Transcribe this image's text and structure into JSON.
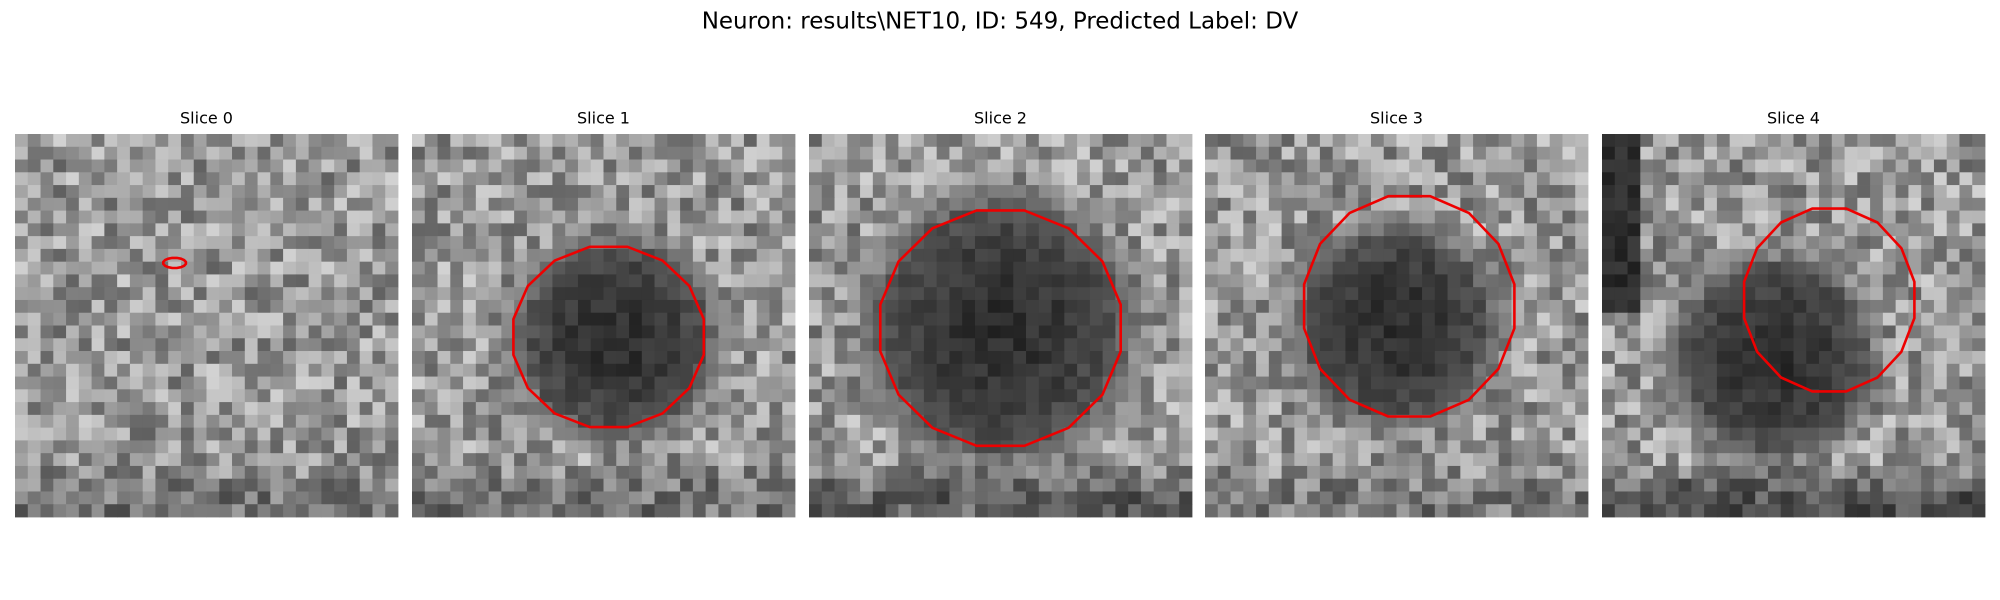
{
  "title": "Neuron: results\\NET10, ID: 549, Predicted Label: DV",
  "panels": [
    {
      "title": "Slice 0"
    },
    {
      "title": "Slice 1"
    },
    {
      "title": "Slice 2"
    },
    {
      "title": "Slice 3"
    },
    {
      "title": "Slice 4"
    }
  ]
}
